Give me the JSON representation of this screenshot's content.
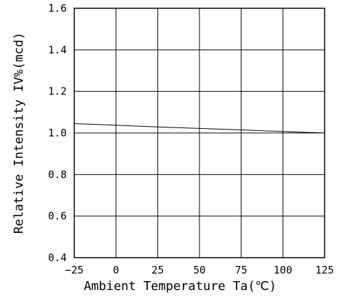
{
  "chart_data": {
    "type": "line",
    "title": "",
    "xlabel": "Ambient Temperature Ta(℃)",
    "ylabel": "Relative Intensity IV%(mcd)",
    "xlim": [
      -25,
      125
    ],
    "ylim": [
      0.4,
      1.6
    ],
    "x_ticks": [
      "−25",
      "0",
      "25",
      "50",
      "75",
      "100",
      "125"
    ],
    "y_ticks": [
      "0.4",
      "0.6",
      "0.8",
      "1.0",
      "1.2",
      "1.4",
      "1.6"
    ],
    "grid": true,
    "series": [
      {
        "x": [
          -25,
          0,
          25,
          50,
          75,
          100,
          125
        ],
        "y": [
          1.045,
          1.037,
          1.029,
          1.022,
          1.015,
          1.007,
          1.0
        ]
      }
    ]
  }
}
